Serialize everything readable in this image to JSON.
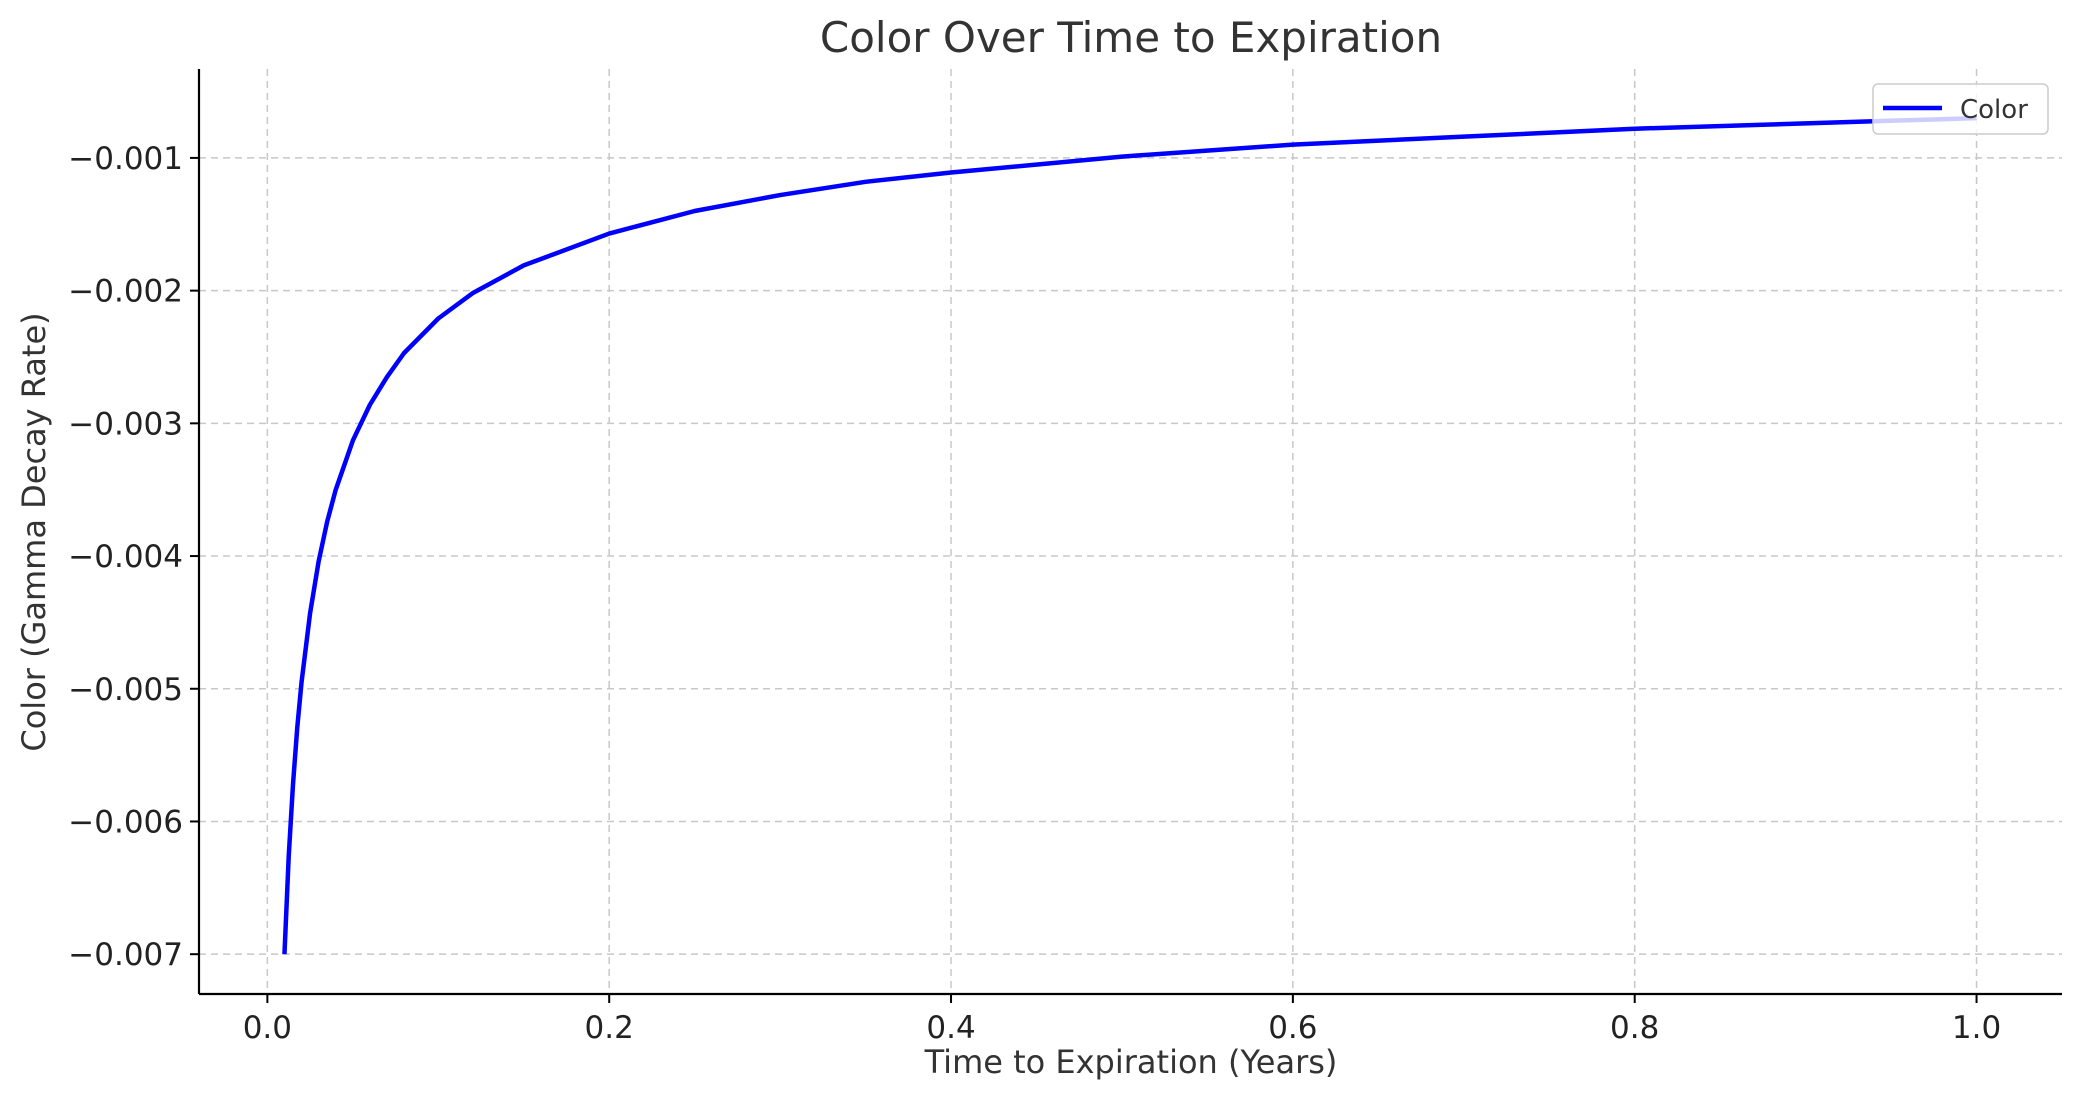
{
  "chart_data": {
    "type": "line",
    "title": "Color Over Time to Expiration",
    "xlabel": "Time to Expiration (Years)",
    "ylabel": "Color (Gamma Decay Rate)",
    "xlim": [
      -0.04,
      1.05
    ],
    "ylim": [
      -0.0073,
      -0.00033
    ],
    "x_ticks": [
      0.0,
      0.2,
      0.4,
      0.6,
      0.8,
      1.0
    ],
    "x_tick_labels": [
      "0.0",
      "0.2",
      "0.4",
      "0.6",
      "0.8",
      "1.0"
    ],
    "y_ticks": [
      -0.007,
      -0.006,
      -0.005,
      -0.004,
      -0.003,
      -0.002,
      -0.001
    ],
    "y_tick_labels": [
      "−0.007",
      "−0.006",
      "−0.005",
      "−0.004",
      "−0.003",
      "−0.002",
      "−0.001"
    ],
    "grid": true,
    "legend_position": "top-right",
    "series": [
      {
        "name": "Color",
        "color": "#0000ff",
        "x": [
          0.01,
          0.0125,
          0.015,
          0.0175,
          0.02,
          0.025,
          0.03,
          0.035,
          0.04,
          0.05,
          0.06,
          0.07,
          0.08,
          0.1,
          0.12,
          0.15,
          0.2,
          0.25,
          0.3,
          0.35,
          0.4,
          0.5,
          0.6,
          0.7,
          0.8,
          0.9,
          1.0
        ],
        "y": [
          -0.007,
          -0.00626,
          -0.00572,
          -0.00529,
          -0.00495,
          -0.00443,
          -0.00404,
          -0.00374,
          -0.0035,
          -0.00313,
          -0.00286,
          -0.00265,
          -0.00247,
          -0.00221,
          -0.00202,
          -0.00181,
          -0.00157,
          -0.0014,
          -0.00128,
          -0.00118,
          -0.00111,
          -0.00099,
          -0.0009,
          -0.00084,
          -0.00078,
          -0.00074,
          -0.0007
        ]
      }
    ]
  }
}
